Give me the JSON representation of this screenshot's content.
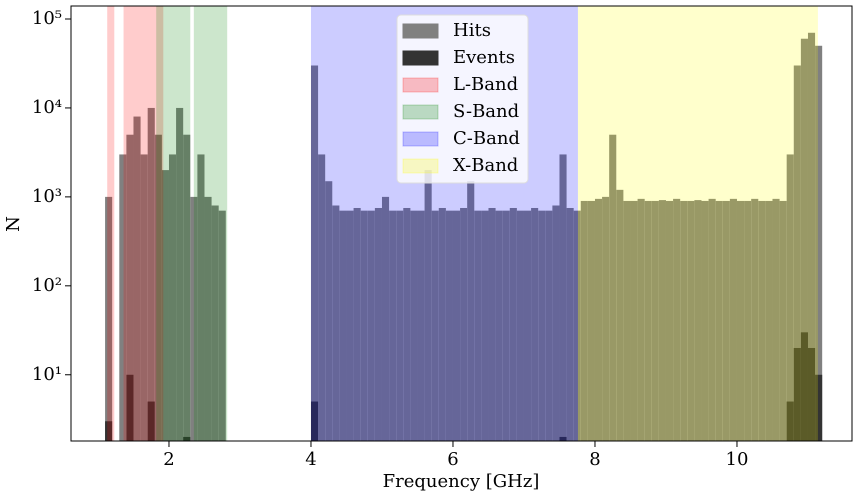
{
  "chart_data": {
    "type": "histogram",
    "xlabel": "Frequency [GHz]",
    "ylabel": "N",
    "xlim": [
      0.62,
      11.62
    ],
    "ylim": [
      1.8,
      140000
    ],
    "yscale": "log",
    "xticks": [
      2,
      4,
      6,
      8,
      10
    ],
    "yticks": [
      {
        "value": 10,
        "label": "10¹"
      },
      {
        "value": 100,
        "label": "10²"
      },
      {
        "value": 1000,
        "label": "10³"
      },
      {
        "value": 10000,
        "label": "10⁴"
      },
      {
        "value": 100000,
        "label": "10⁵"
      }
    ],
    "legend": "upper center",
    "alpha": 0.2,
    "bins": [
      1.1,
      1.2,
      1.3,
      1.4,
      1.5,
      1.6,
      1.7,
      1.8,
      1.9,
      2.0,
      2.1,
      2.2,
      2.3,
      2.4,
      2.5,
      2.6,
      2.7,
      2.8,
      4.0,
      4.1,
      4.2,
      4.3,
      4.4,
      4.5,
      4.6,
      4.7,
      4.8,
      4.9,
      5.0,
      5.1,
      5.2,
      5.3,
      5.4,
      5.5,
      5.6,
      5.7,
      5.8,
      5.9,
      6.0,
      6.1,
      6.2,
      6.3,
      6.4,
      6.5,
      6.6,
      6.7,
      6.8,
      6.9,
      7.0,
      7.1,
      7.2,
      7.3,
      7.4,
      7.5,
      7.6,
      7.7,
      7.8,
      7.9,
      8.0,
      8.1,
      8.2,
      8.3,
      8.4,
      8.5,
      8.6,
      8.7,
      8.8,
      8.9,
      9.0,
      9.1,
      9.2,
      9.3,
      9.4,
      9.5,
      9.6,
      9.7,
      9.8,
      9.9,
      10.0,
      10.1,
      10.2,
      10.3,
      10.4,
      10.5,
      10.6,
      10.7,
      10.8,
      10.9,
      11.0,
      11.1,
      11.2
    ],
    "series": [
      {
        "name": "Hits",
        "color": "#808080",
        "values": [
          1000,
          0,
          3000,
          5000,
          8000,
          3000,
          10000,
          5000,
          2000,
          3000,
          10000,
          5000,
          1000,
          3000,
          1000,
          800,
          700,
          0,
          30000,
          3000,
          1500,
          800,
          700,
          700,
          750,
          700,
          700,
          750,
          1000,
          700,
          700,
          750,
          700,
          700,
          2000,
          700,
          750,
          700,
          700,
          750,
          1500,
          700,
          700,
          750,
          700,
          700,
          750,
          700,
          700,
          750,
          700,
          700,
          800,
          3000,
          750,
          700,
          900,
          900,
          950,
          1000,
          5000,
          1200,
          900,
          900,
          950,
          900,
          900,
          920,
          900,
          950,
          900,
          900,
          920,
          900,
          950,
          900,
          900,
          950,
          900,
          900,
          950,
          900,
          900,
          950,
          900,
          3000,
          30000,
          60000,
          70000,
          50000
        ]
      },
      {
        "name": "Events",
        "color": "#333333",
        "values": [
          3,
          0,
          0,
          10,
          0,
          0,
          5,
          0,
          0,
          0,
          0,
          2,
          0,
          0,
          0,
          0,
          0,
          0,
          5,
          0,
          0,
          0,
          0,
          0,
          0,
          0,
          0,
          0,
          0,
          0,
          0,
          0,
          0,
          0,
          0,
          0,
          0,
          0,
          0,
          0,
          0,
          0,
          0,
          0,
          0,
          0,
          0,
          0,
          0,
          0,
          0,
          0,
          0,
          2,
          0,
          0,
          0,
          0,
          0,
          0,
          0,
          0,
          0,
          0,
          0,
          0,
          0,
          0,
          0,
          0,
          0,
          0,
          0,
          0,
          0,
          0,
          0,
          0,
          0,
          0,
          0,
          0,
          0,
          0,
          0,
          5,
          20,
          30,
          20,
          10
        ]
      }
    ],
    "bands": [
      {
        "name": "L-Band",
        "color": "#ff0000",
        "spans": [
          [
            1.13,
            1.23
          ],
          [
            1.36,
            1.92
          ]
        ]
      },
      {
        "name": "S-Band",
        "color": "#008000",
        "spans": [
          [
            1.82,
            2.3
          ],
          [
            2.35,
            2.82
          ]
        ]
      },
      {
        "name": "C-Band",
        "color": "#0000ff",
        "spans": [
          [
            4.0,
            7.76
          ]
        ]
      },
      {
        "name": "X-Band",
        "color": "#ffff00",
        "spans": [
          [
            7.76,
            11.14
          ]
        ]
      }
    ]
  }
}
